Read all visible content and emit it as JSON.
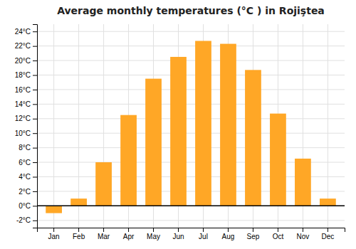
{
  "chart_data": {
    "type": "bar",
    "title": "Average monthly temperatures (°C ) in Rojiştea",
    "categories": [
      "Jan",
      "Feb",
      "Mar",
      "Apr",
      "May",
      "Jun",
      "Jul",
      "Aug",
      "Sep",
      "Oct",
      "Nov",
      "Dec"
    ],
    "values": [
      -1.0,
      1.0,
      6.0,
      12.5,
      17.5,
      20.5,
      22.7,
      22.3,
      18.7,
      12.7,
      6.5,
      1.0
    ],
    "color": "#FFA726",
    "ylim": [
      -3,
      25
    ],
    "yticks": [
      {
        "value": -2,
        "label": "-2°C"
      },
      {
        "value": 0,
        "label": "0°C"
      },
      {
        "value": 2,
        "label": "2°C"
      },
      {
        "value": 4,
        "label": "4°C"
      },
      {
        "value": 6,
        "label": "6°C"
      },
      {
        "value": 8,
        "label": "8°C"
      },
      {
        "value": 10,
        "label": "10°C"
      },
      {
        "value": 12,
        "label": "12°C"
      },
      {
        "value": 14,
        "label": "14°C"
      },
      {
        "value": 16,
        "label": "16°C"
      },
      {
        "value": 18,
        "label": "18°C"
      },
      {
        "value": 20,
        "label": "20°C"
      },
      {
        "value": 22,
        "label": "22°C"
      },
      {
        "value": 24,
        "label": "24°C"
      }
    ],
    "grid": true
  }
}
